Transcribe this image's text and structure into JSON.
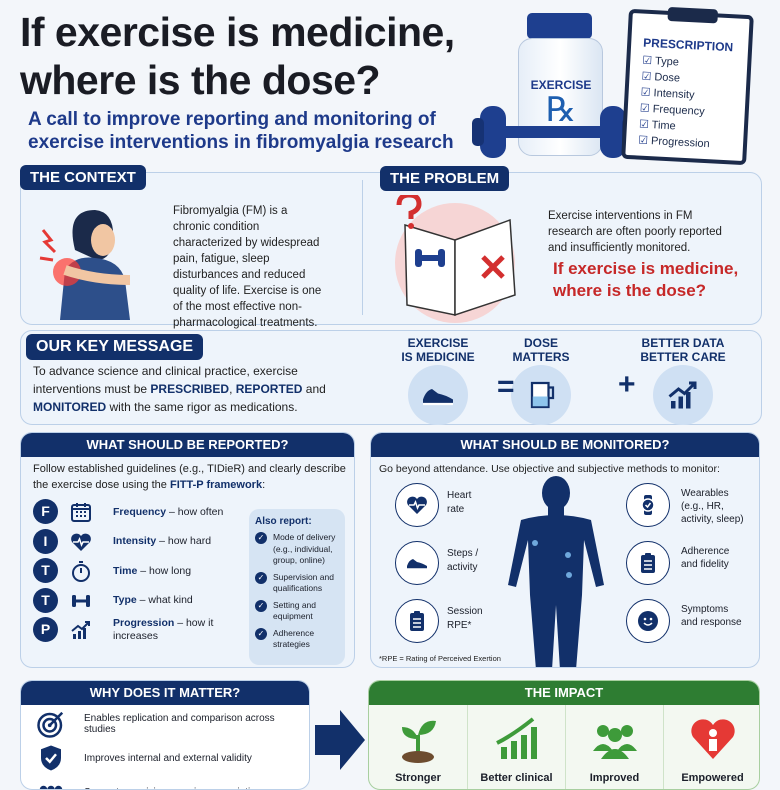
{
  "header": {
    "title_line1": "If exercise is medicine,",
    "title_line2": "where is the dose?",
    "subtitle_line1": "A call to improve reporting and monitoring of",
    "subtitle_line2": "exercise interventions in fibromyalgia research"
  },
  "hero": {
    "bottle_label": "EXERCISE",
    "bottle_symbol": "℞",
    "clipboard_title": "PRESCRIPTION",
    "clipboard_items": [
      "Type",
      "Dose",
      "Intensity",
      "Frequency",
      "Time",
      "Progression"
    ]
  },
  "context": {
    "label": "THE CONTEXT",
    "text": "Fibromyalgia (FM) is a chronic condition characterized by widespread pain, fatigue, sleep disturbances and reduced quality of life. Exercise is one of the most effective non-pharmacological treatments."
  },
  "problem": {
    "label": "THE PROBLEM",
    "text": "Exercise interventions in FM research are often poorly reported and insufficiently monitored.",
    "highlight_line1": "If exercise is medicine,",
    "highlight_line2": "where is the dose?"
  },
  "key_message": {
    "label": "OUR KEY MESSAGE",
    "text_a": "To advance science and clinical practice, exercise interventions must be ",
    "w1": "PRESCRIBED",
    "sep1": ", ",
    "w2": "REPORTED",
    "sep2": " and ",
    "w3": "MONITORED",
    "text_b": " with the same rigor as medications.",
    "eq": [
      {
        "line1": "EXERCISE",
        "line2": "IS MEDICINE",
        "icon": "shoe-icon"
      },
      {
        "line1": "DOSE",
        "line2": "MATTERS",
        "icon": "measuring-cup-icon"
      },
      {
        "line1": "BETTER DATA",
        "line2": "BETTER CARE",
        "icon": "chart-up-icon"
      }
    ],
    "equals": "=",
    "plus": "+"
  },
  "reported": {
    "title": "WHAT SHOULD BE REPORTED?",
    "intro_a": "Follow established guidelines (e.g., TIDieR) and clearly describe the exercise dose using the ",
    "intro_b": "FITT-P framework",
    "intro_c": ":",
    "fitt": [
      {
        "letter": "F",
        "term": "Frequency",
        "desc": " – how often",
        "icon": "calendar-icon"
      },
      {
        "letter": "I",
        "term": "Intensity",
        "desc": " – how hard",
        "icon": "heart-rate-icon"
      },
      {
        "letter": "T",
        "term": "Time",
        "desc": " – how long",
        "icon": "stopwatch-icon"
      },
      {
        "letter": "T",
        "term": "Type",
        "desc": " – what kind",
        "icon": "dumbbell-icon"
      },
      {
        "letter": "P",
        "term": "Progression",
        "desc": " – how it increases",
        "icon": "chart-up-icon"
      }
    ],
    "also_title": "Also report:",
    "also_items": [
      "Mode of delivery (e.g., individual, group, online)",
      "Supervision and qualifications",
      "Setting and equipment",
      "Adherence strategies"
    ]
  },
  "monitored": {
    "title": "WHAT SHOULD BE MONITORED?",
    "intro": "Go beyond attendance. Use objective and subjective methods to monitor:",
    "left": [
      {
        "label": "Heart rate",
        "icon": "heart-rate-icon"
      },
      {
        "label": "Steps / activity",
        "icon": "shoe-icon"
      },
      {
        "label": "Session RPE*",
        "icon": "clipboard-icon"
      }
    ],
    "right": [
      {
        "label": "Wearables (e.g., HR, activity, sleep)",
        "icon": "watch-icon"
      },
      {
        "label": "Adherence and fidelity",
        "icon": "clipboard-icon"
      },
      {
        "label": "Symptoms and response",
        "icon": "smiley-icon"
      }
    ],
    "footnote": "*RPE = Rating of Perceived Exertion"
  },
  "why": {
    "title": "WHY DOES IT MATTER?",
    "items": [
      {
        "text": "Enables replication and comparison across studies",
        "icon": "target-icon"
      },
      {
        "text": "Improves internal and external validity",
        "icon": "shield-check-icon"
      },
      {
        "text": "Supports precision exercise prescription",
        "icon": "people-icon"
      }
    ]
  },
  "impact": {
    "title": "THE IMPACT",
    "color": "#2e7d32",
    "items": [
      {
        "label": "Stronger",
        "icon": "sprout-icon"
      },
      {
        "label": "Better clinical",
        "icon": "growth-chart-icon"
      },
      {
        "label": "Improved",
        "icon": "group-icon"
      },
      {
        "label": "Empowered",
        "icon": "heart-person-icon"
      }
    ]
  },
  "colors": {
    "navy": "#12306a",
    "accent_blue": "#1e3a8a",
    "alert_red": "#c62828",
    "impact_green": "#2e7d32"
  }
}
